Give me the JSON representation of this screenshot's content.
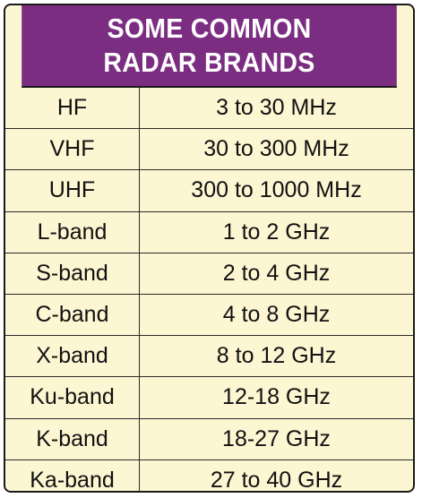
{
  "title": {
    "line1": "SOME COMMON",
    "line2": "RADAR BRANDS"
  },
  "rows": [
    {
      "band": "HF",
      "range": "3 to 30 MHz"
    },
    {
      "band": "VHF",
      "range": "30 to 300 MHz"
    },
    {
      "band": "UHF",
      "range": "300 to 1000 MHz"
    },
    {
      "band": "L-band",
      "range": "1 to 2 GHz"
    },
    {
      "band": "S-band",
      "range": "2 to 4 GHz"
    },
    {
      "band": "C-band",
      "range": "4 to 8 GHz"
    },
    {
      "band": "X-band",
      "range": "8 to 12 GHz"
    },
    {
      "band": "Ku-band",
      "range": "12-18 GHz"
    },
    {
      "band": "K-band",
      "range": "18-27 GHz"
    },
    {
      "band": "Ka-band",
      "range": "27 to 40 GHz"
    }
  ],
  "colors": {
    "header_bg": "#7b2d82",
    "body_bg": "#fdf6d2",
    "border": "#1a1a1a"
  }
}
